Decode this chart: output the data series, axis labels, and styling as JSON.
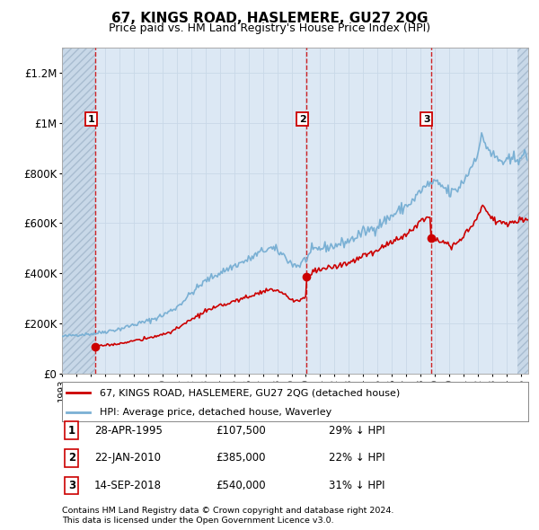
{
  "title": "67, KINGS ROAD, HASLEMERE, GU27 2QG",
  "subtitle": "Price paid vs. HM Land Registry's House Price Index (HPI)",
  "legend_property": "67, KINGS ROAD, HASLEMERE, GU27 2QG (detached house)",
  "legend_hpi": "HPI: Average price, detached house, Waverley",
  "footnote1": "Contains HM Land Registry data © Crown copyright and database right 2024.",
  "footnote2": "This data is licensed under the Open Government Licence v3.0.",
  "transactions": [
    {
      "num": 1,
      "date": "28-APR-1995",
      "price": 107500,
      "pct": "29% ↓ HPI",
      "year": 1995.32
    },
    {
      "num": 2,
      "date": "22-JAN-2010",
      "price": 385000,
      "pct": "22% ↓ HPI",
      "year": 2010.06
    },
    {
      "num": 3,
      "date": "14-SEP-2018",
      "price": 540000,
      "pct": "31% ↓ HPI",
      "year": 2018.71
    }
  ],
  "hpi_color": "#7ab0d4",
  "price_color": "#cc0000",
  "grid_color": "#c8d8e8",
  "background_color": "#dce8f4",
  "hatch_area_color": "#c8d8e8",
  "ylim": [
    0,
    1300000
  ],
  "xlim_start": 1993.0,
  "xlim_end": 2025.5,
  "hatch_right_start": 2024.75,
  "yticks": [
    0,
    200000,
    400000,
    600000,
    800000,
    1000000,
    1200000
  ],
  "ytick_labels": [
    "£0",
    "£200K",
    "£400K",
    "£600K",
    "£800K",
    "£1M",
    "£1.2M"
  ]
}
